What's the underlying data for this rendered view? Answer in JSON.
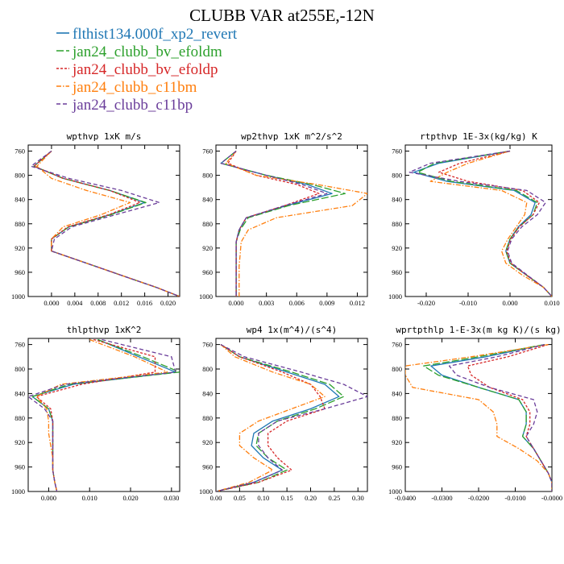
{
  "title": "CLUBB VAR at255E,-12N",
  "series": [
    {
      "name": "flthist134.000f_xp2_revert",
      "color": "#1f77b4",
      "dash": "solid"
    },
    {
      "name": "jan24_clubb_bv_efoldm",
      "color": "#2ca02c",
      "dash": "long"
    },
    {
      "name": "jan24_clubb_bv_efoldp",
      "color": "#d62728",
      "dash": "short"
    },
    {
      "name": "jan24_clubb_c11bm",
      "color": "#ff7f0e",
      "dash": "dashdot"
    },
    {
      "name": "jan24_clubb_c11bp",
      "color": "#6a3d9a",
      "dash": "medium"
    }
  ],
  "chart_data": [
    {
      "type": "line",
      "title": "wpthvp  1xK m/s",
      "xlim": [
        -0.004,
        0.022
      ],
      "xticks": [
        0.0,
        0.004,
        0.008,
        0.012,
        0.016,
        0.02
      ],
      "xticklabels": [
        "0.000",
        "0.004",
        "0.008",
        "0.012",
        "0.016",
        "0.020"
      ],
      "ylim": [
        1000,
        750
      ],
      "yticks": [
        760,
        800,
        840,
        880,
        920,
        960,
        1000
      ],
      "y": [
        760,
        785,
        805,
        825,
        845,
        865,
        885,
        905,
        925,
        945,
        965,
        985,
        1000
      ],
      "series": [
        [
          0.0,
          -0.003,
          0.002,
          0.01,
          0.016,
          0.01,
          0.003,
          0.0,
          0.0,
          0.006,
          0.012,
          0.018,
          0.022
        ],
        [
          0.0,
          -0.003,
          0.002,
          0.01,
          0.0162,
          0.0102,
          0.003,
          0.0,
          0.0,
          0.006,
          0.012,
          0.018,
          0.022
        ],
        [
          0.0,
          -0.003,
          0.002,
          0.01,
          0.0152,
          0.0098,
          0.0028,
          0.0,
          0.0,
          0.006,
          0.012,
          0.018,
          0.022
        ],
        [
          0.0,
          -0.0025,
          0.0,
          0.006,
          0.0135,
          0.0085,
          0.002,
          0.0,
          0.0,
          0.006,
          0.012,
          0.018,
          0.022
        ],
        [
          0.0,
          -0.0035,
          0.003,
          0.012,
          0.0185,
          0.011,
          0.0035,
          0.0005,
          0.0,
          0.006,
          0.012,
          0.018,
          0.022
        ]
      ]
    },
    {
      "type": "line",
      "title": "wp2thvp  1xK m^2/s^2",
      "xlim": [
        -0.002,
        0.013
      ],
      "xticks": [
        0.0,
        0.003,
        0.006,
        0.009,
        0.012
      ],
      "xticklabels": [
        "0.000",
        "0.003",
        "0.006",
        "0.009",
        "0.012"
      ],
      "ylim": [
        1000,
        750
      ],
      "yticks": [
        760,
        800,
        840,
        880,
        920,
        960,
        1000
      ],
      "y": [
        760,
        780,
        800,
        815,
        830,
        850,
        870,
        890,
        910,
        930,
        950,
        970,
        990,
        1000
      ],
      "series": [
        [
          0.0,
          -0.0015,
          0.003,
          0.007,
          0.0095,
          0.005,
          0.001,
          0.0003,
          0.0,
          0.0,
          0.0,
          0.0,
          0.0,
          0.0
        ],
        [
          0.0,
          -0.0015,
          0.003,
          0.0075,
          0.0108,
          0.0052,
          0.0012,
          0.0004,
          0.0,
          0.0,
          0.0,
          0.0,
          0.0,
          0.0
        ],
        [
          0.0,
          -0.0008,
          0.002,
          0.006,
          0.0082,
          0.0048,
          0.001,
          0.0003,
          0.0,
          0.0,
          0.0,
          0.0,
          0.0,
          0.0
        ],
        [
          0.0,
          -0.001,
          0.002,
          0.008,
          0.013,
          0.0115,
          0.004,
          0.0012,
          0.0005,
          0.0004,
          0.0003,
          0.0003,
          0.0003,
          0.0003
        ],
        [
          0.0,
          -0.0015,
          0.003,
          0.0065,
          0.009,
          0.0048,
          0.001,
          0.0003,
          0.0,
          0.0,
          0.0,
          0.0,
          0.0,
          0.0
        ]
      ]
    },
    {
      "type": "line",
      "title": "rtpthvp  1E-3x(kg/kg) K",
      "xlim": [
        -0.025,
        0.01
      ],
      "xticks": [
        -0.02,
        -0.01,
        0.0,
        0.01
      ],
      "xticklabels": [
        "-0.020",
        "-0.010",
        "0.000",
        "0.010"
      ],
      "ylim": [
        1000,
        750
      ],
      "yticks": [
        760,
        800,
        840,
        880,
        920,
        960,
        1000
      ],
      "y": [
        760,
        780,
        795,
        810,
        825,
        845,
        865,
        885,
        905,
        925,
        945,
        965,
        985,
        1000
      ],
      "series": [
        [
          0.0,
          -0.017,
          -0.023,
          -0.015,
          0.001,
          0.006,
          0.005,
          0.002,
          0.0,
          -0.001,
          0.0,
          0.004,
          0.008,
          0.01
        ],
        [
          0.0,
          -0.018,
          -0.022,
          -0.014,
          0.0015,
          0.0065,
          0.0055,
          0.0022,
          0.0,
          -0.001,
          0.0,
          0.004,
          0.008,
          0.01
        ],
        [
          0.0,
          -0.012,
          -0.017,
          -0.01,
          0.003,
          0.007,
          0.0055,
          0.0022,
          0.0002,
          -0.0008,
          0.0002,
          0.004,
          0.008,
          0.01
        ],
        [
          0.0,
          -0.01,
          -0.015,
          -0.019,
          -0.002,
          0.004,
          0.0035,
          0.0015,
          -0.0005,
          -0.002,
          -0.001,
          0.003,
          0.008,
          0.01
        ],
        [
          0.0,
          -0.019,
          -0.024,
          -0.012,
          0.004,
          0.0085,
          0.0065,
          0.0028,
          0.0004,
          -0.0006,
          0.0004,
          0.0042,
          0.008,
          0.01
        ]
      ]
    },
    {
      "type": "line",
      "title": "thlpthvp  1xK^2",
      "xlim": [
        -0.005,
        0.032
      ],
      "xticks": [
        0.0,
        0.01,
        0.02,
        0.03
      ],
      "xticklabels": [
        "0.000",
        "0.010",
        "0.020",
        "0.030"
      ],
      "ylim": [
        1000,
        750
      ],
      "yticks": [
        760,
        800,
        840,
        880,
        920,
        960,
        1000
      ],
      "y": [
        752,
        780,
        805,
        825,
        845,
        865,
        885,
        905,
        925,
        945,
        965,
        985,
        1000
      ],
      "series": [
        [
          0.012,
          0.022,
          0.031,
          0.006,
          -0.004,
          0.0,
          0.001,
          0.001,
          0.001,
          0.001,
          0.001,
          0.0015,
          0.002
        ],
        [
          0.012,
          0.023,
          0.032,
          0.005,
          -0.004,
          0.0,
          0.001,
          0.001,
          0.001,
          0.001,
          0.001,
          0.0015,
          0.002
        ],
        [
          0.011,
          0.026,
          0.026,
          0.008,
          -0.003,
          0.0005,
          0.001,
          0.001,
          0.001,
          0.001,
          0.001,
          0.0015,
          0.002
        ],
        [
          0.01,
          0.021,
          0.029,
          0.003,
          -0.003,
          -0.0005,
          0.0,
          0.0,
          0.0005,
          0.001,
          0.001,
          0.0015,
          0.002
        ],
        [
          0.013,
          0.03,
          0.031,
          0.004,
          -0.005,
          -0.001,
          0.001,
          0.001,
          0.001,
          0.001,
          0.001,
          0.0015,
          0.002
        ]
      ]
    },
    {
      "type": "line",
      "title": "wp4  1x(m^4)/(s^4)",
      "xlim": [
        0.0,
        0.32
      ],
      "xticks": [
        0.0,
        0.05,
        0.1,
        0.15,
        0.2,
        0.25,
        0.3
      ],
      "xticklabels": [
        "0.00",
        "0.05",
        "0.10",
        "0.15",
        "0.20",
        "0.25",
        "0.30"
      ],
      "ylim": [
        1000,
        750
      ],
      "yticks": [
        760,
        800,
        840,
        880,
        920,
        960,
        1000
      ],
      "y": [
        760,
        780,
        805,
        825,
        845,
        865,
        885,
        905,
        925,
        945,
        965,
        985,
        1000
      ],
      "series": [
        [
          0.01,
          0.05,
          0.15,
          0.23,
          0.26,
          0.2,
          0.12,
          0.08,
          0.075,
          0.1,
          0.14,
          0.08,
          0.0
        ],
        [
          0.01,
          0.05,
          0.16,
          0.24,
          0.27,
          0.21,
          0.13,
          0.09,
          0.085,
          0.11,
          0.15,
          0.09,
          0.0
        ],
        [
          0.01,
          0.05,
          0.14,
          0.2,
          0.22,
          0.23,
          0.15,
          0.11,
          0.11,
          0.13,
          0.16,
          0.09,
          0.0
        ],
        [
          0.01,
          0.04,
          0.12,
          0.2,
          0.23,
          0.16,
          0.09,
          0.05,
          0.05,
          0.08,
          0.12,
          0.07,
          0.0
        ],
        [
          0.01,
          0.06,
          0.18,
          0.27,
          0.32,
          0.23,
          0.13,
          0.09,
          0.09,
          0.11,
          0.14,
          0.08,
          0.0
        ]
      ]
    },
    {
      "type": "line",
      "title": "wprtpthlp  1-E-3x(m kg K)/(s kg)",
      "xlim": [
        -0.04,
        0.0
      ],
      "xticks": [
        -0.04,
        -0.03,
        -0.02,
        -0.01,
        0.0
      ],
      "xticklabels": [
        "-0.0400",
        "-0.0300",
        "-0.0200",
        "-0.0100",
        "-0.0000"
      ],
      "ylim": [
        1000,
        750
      ],
      "yticks": [
        760,
        800,
        840,
        880,
        920,
        960,
        1000
      ],
      "y": [
        760,
        780,
        795,
        810,
        830,
        850,
        870,
        890,
        910,
        930,
        950,
        970,
        985,
        1000
      ],
      "series": [
        [
          -0.002,
          -0.018,
          -0.033,
          -0.03,
          -0.02,
          -0.009,
          -0.007,
          -0.007,
          -0.008,
          -0.005,
          -0.003,
          -0.001,
          0.0,
          0.0
        ],
        [
          -0.002,
          -0.02,
          -0.035,
          -0.031,
          -0.02,
          -0.009,
          -0.007,
          -0.007,
          -0.008,
          -0.005,
          -0.003,
          -0.001,
          0.0,
          0.0
        ],
        [
          -0.001,
          -0.012,
          -0.023,
          -0.022,
          -0.017,
          -0.008,
          -0.006,
          -0.006,
          -0.007,
          -0.005,
          -0.003,
          -0.001,
          0.0,
          0.0
        ],
        [
          -0.001,
          -0.022,
          -0.04,
          -0.04,
          -0.038,
          -0.02,
          -0.016,
          -0.015,
          -0.015,
          -0.009,
          -0.004,
          -0.001,
          0.0,
          0.0
        ],
        [
          -0.002,
          -0.015,
          -0.028,
          -0.026,
          -0.017,
          -0.005,
          -0.004,
          -0.005,
          -0.007,
          -0.005,
          -0.003,
          -0.001,
          0.0,
          0.0
        ]
      ]
    }
  ]
}
